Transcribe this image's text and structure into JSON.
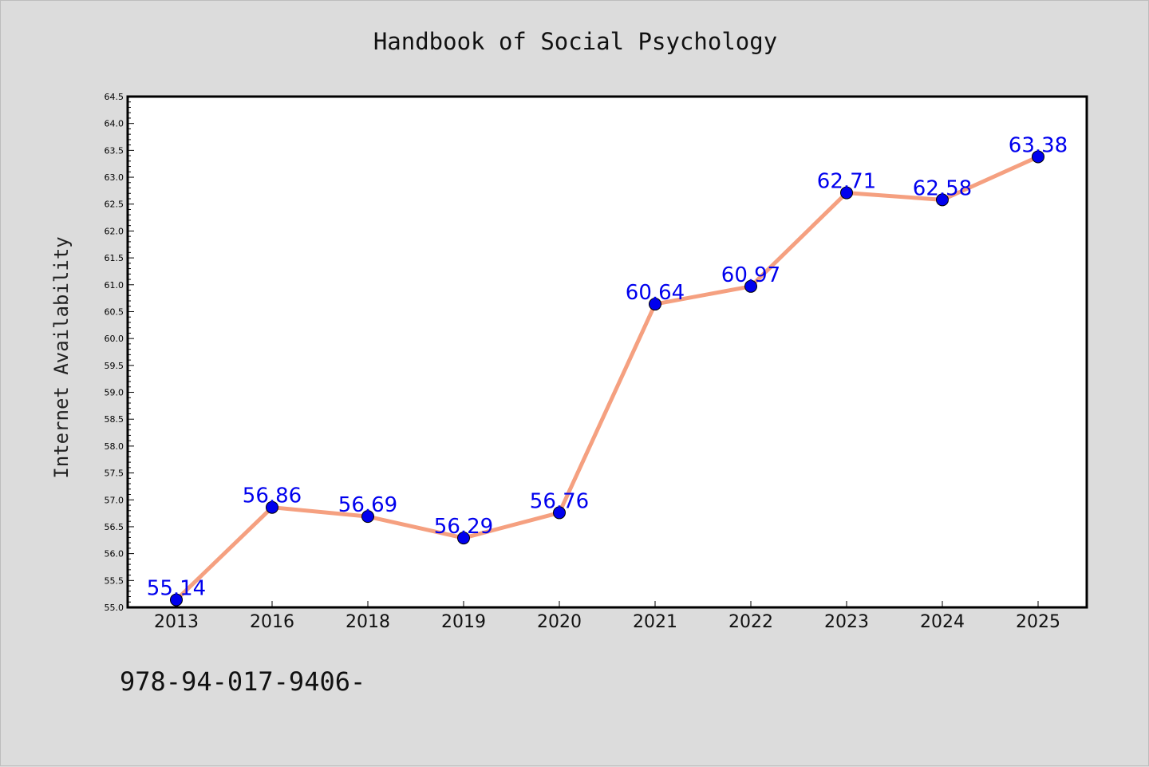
{
  "title": "Handbook of Social Psychology",
  "footer_text": "978-94-017-9406-",
  "chart_data": {
    "type": "line",
    "title": "Handbook of Social Psychology",
    "xlabel": "",
    "ylabel": "Internet Availability",
    "categories": [
      "2013",
      "2016",
      "2018",
      "2019",
      "2020",
      "2021",
      "2022",
      "2023",
      "2024",
      "2025"
    ],
    "series": [
      {
        "values": [
          55.14,
          56.86,
          56.69,
          56.29,
          56.76,
          60.64,
          60.97,
          62.71,
          62.58,
          63.38
        ],
        "line_color": "#f5a080",
        "marker_color": "#0000ee"
      }
    ],
    "data_labels": [
      "55.14",
      "56.86",
      "56.69",
      "56.29",
      "56.76",
      "60.64",
      "60.97",
      "62.71",
      "62.58",
      "63.38"
    ],
    "ylim": [
      55.0,
      64.5
    ],
    "ytick_step": 0.5,
    "grid": false,
    "legend": "none",
    "label_color": "#0000ee"
  }
}
